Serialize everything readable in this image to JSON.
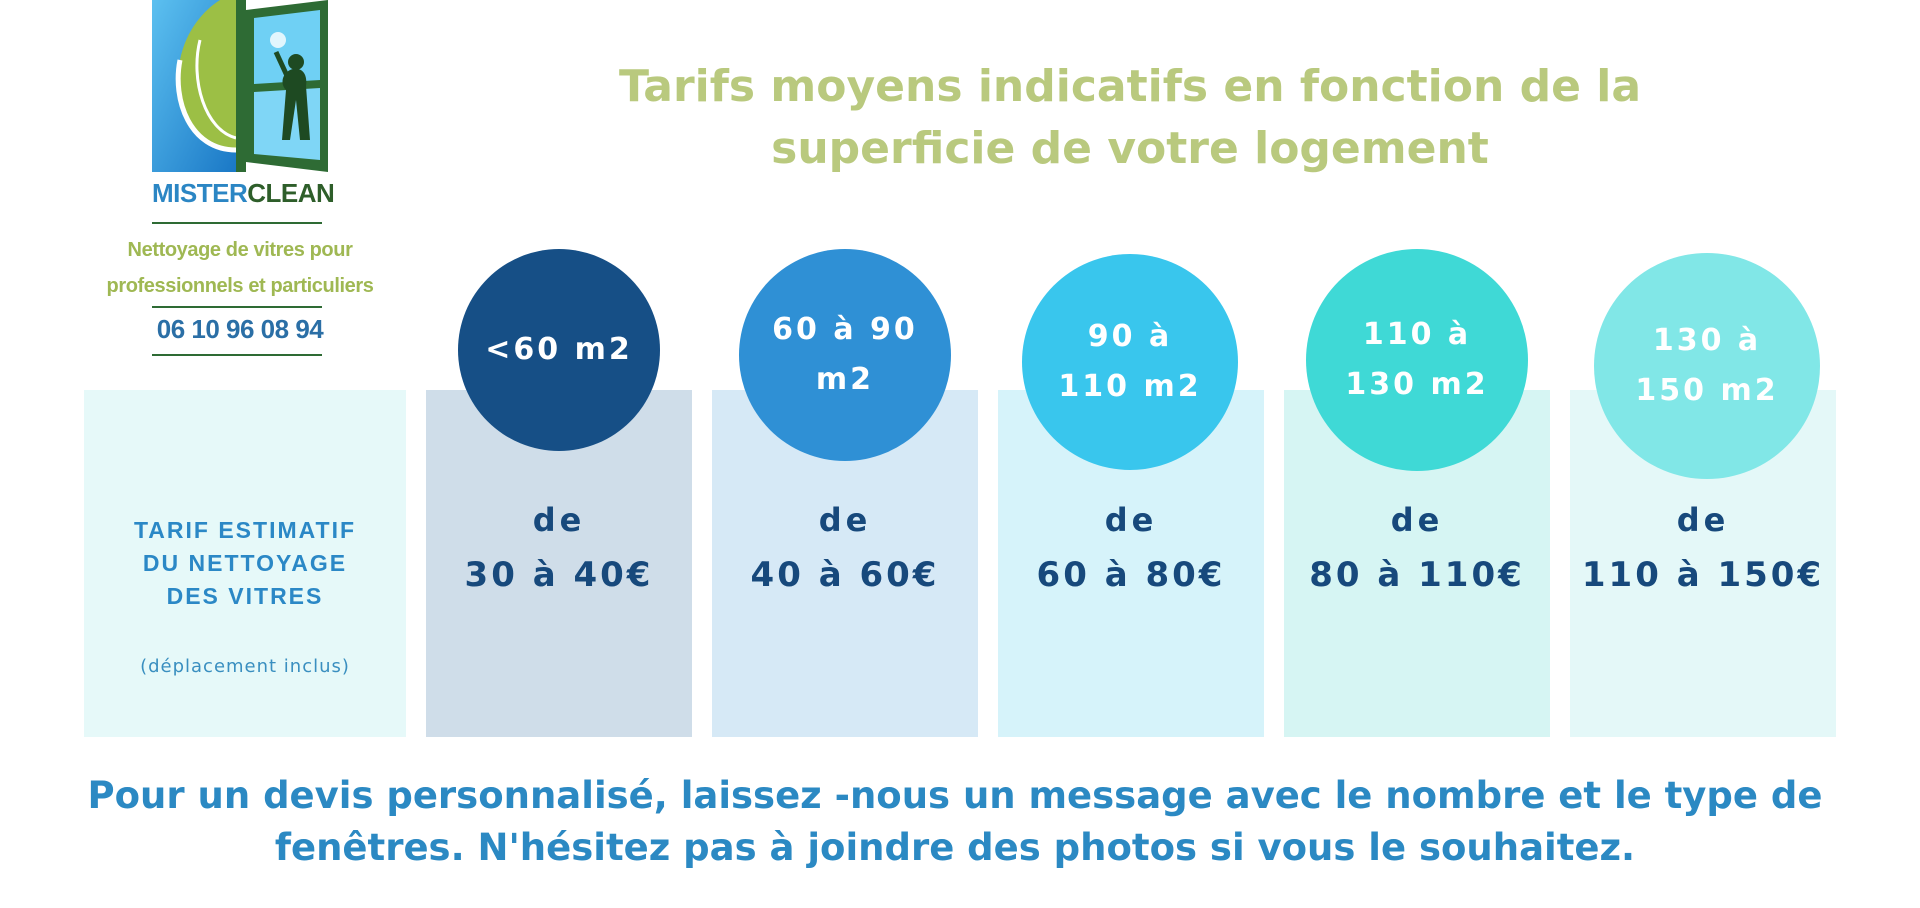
{
  "logo": {
    "brand_left": "MISTER",
    "brand_right": "CLEAN",
    "tagline_line1": "Nettoyage de vitres pour",
    "tagline_line2": "professionnels et particuliers",
    "phone": "06 10 96 08 94",
    "icon": "window-cleaner-logo-icon"
  },
  "title": {
    "line1": "Tarifs moyens indicatifs en fonction de la",
    "line2": "superficie de votre logement"
  },
  "label_panel": {
    "line1": "TARIF ESTIMATIF",
    "line2": "DU NETTOYAGE",
    "line3": "DES VITRES",
    "note": "(déplacement inclus)"
  },
  "tiers": [
    {
      "size": "<60 m2",
      "de": "de",
      "price": "30 à 40€",
      "circle_color": "#164f86",
      "panel_color": "#cfdde9"
    },
    {
      "size": "60 à 90 m2",
      "de": "de",
      "price": "40 à 60€",
      "circle_color": "#2f90d5",
      "panel_color": "#d6e9f6"
    },
    {
      "size": "90 à 110 m2",
      "de": "de",
      "price": "60 à 80€",
      "circle_color": "#39c6ed",
      "panel_color": "#d6f3fa"
    },
    {
      "size": "110 à 130 m2",
      "de": "de",
      "price": "80 à 110€",
      "circle_color": "#3fd9d6",
      "panel_color": "#d6f5f3"
    },
    {
      "size": "130 à 150 m2",
      "de": "de",
      "price": "110 à 150€",
      "circle_color": "#81e7e7",
      "panel_color": "#e4f8f8"
    }
  ],
  "footer": {
    "line1": "Pour un devis personnalisé, laissez -nous un message avec le nombre et le type de",
    "line2": "fenêtres. N'hésitez pas à joindre des photos si vous le souhaitez."
  }
}
